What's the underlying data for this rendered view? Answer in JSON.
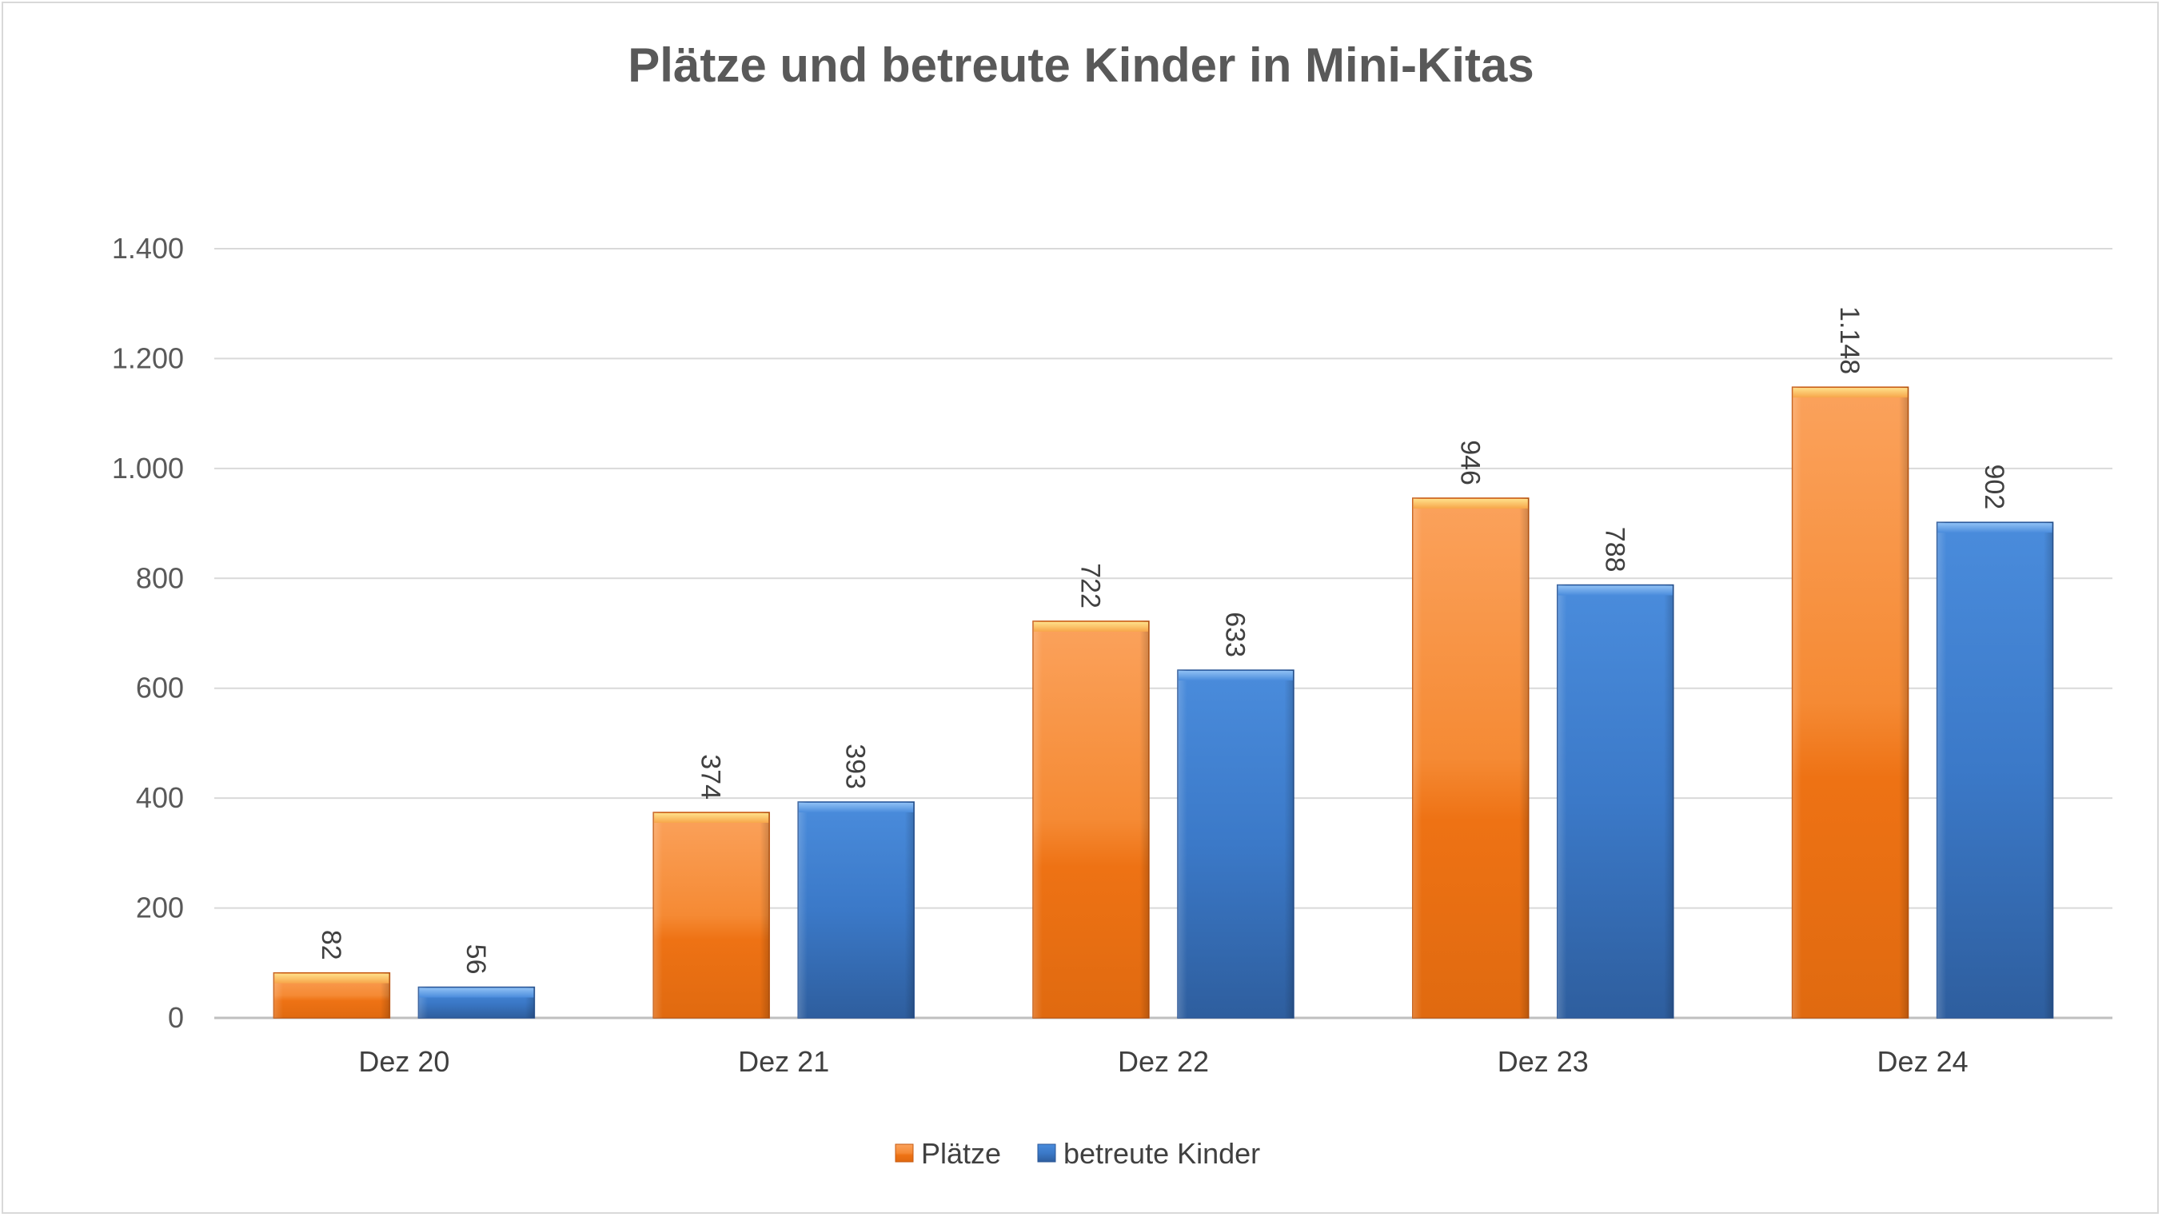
{
  "chart_data": {
    "type": "bar",
    "title": "Plätze und betreute Kinder in Mini-Kitas",
    "categories": [
      "Dez 20",
      "Dez 21",
      "Dez 22",
      "Dez 23",
      "Dez 24"
    ],
    "series": [
      {
        "name": "Plätze",
        "values": [
          82,
          374,
          722,
          946,
          1148
        ],
        "labels": [
          "82",
          "374",
          "722",
          "946",
          "1.148"
        ],
        "color": "#ED7D31"
      },
      {
        "name": "betreute Kinder",
        "values": [
          56,
          393,
          633,
          788,
          902
        ],
        "labels": [
          "56",
          "393",
          "633",
          "788",
          "902"
        ],
        "color": "#3F7FD0"
      }
    ],
    "ylim": [
      0,
      1400
    ],
    "yticks": [
      0,
      200,
      400,
      600,
      800,
      1000,
      1200,
      1400
    ],
    "ytick_labels": [
      "0",
      "200",
      "400",
      "600",
      "800",
      "1.000",
      "1.200",
      "1.400"
    ],
    "xlabel": "",
    "ylabel": "",
    "grid": true,
    "legend": "bottom-center",
    "data_labels": "rotated-above-bars"
  }
}
